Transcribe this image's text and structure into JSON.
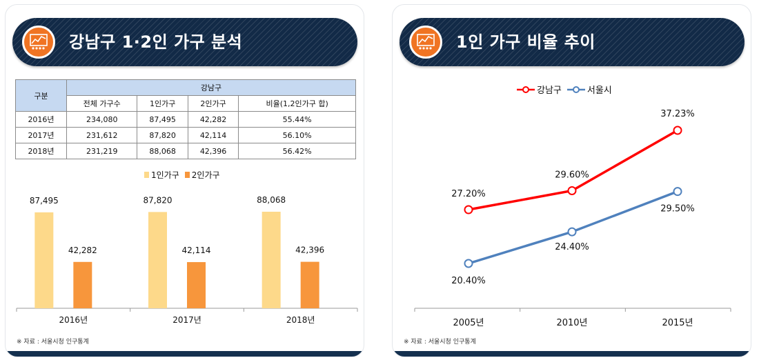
{
  "left": {
    "title": "강남구 1·2인 가구 분석",
    "table": {
      "col_group_label": "구분",
      "region": "강남구",
      "headers": [
        "전체 가구수",
        "1인가구",
        "2인가구",
        "비율(1,2인가구 합)"
      ],
      "rows": [
        [
          "2016년",
          "234,080",
          "87,495",
          "42,282",
          "55.44%"
        ],
        [
          "2017년",
          "231,612",
          "87,820",
          "42,114",
          "56.10%"
        ],
        [
          "2018년",
          "231,219",
          "88,068",
          "42,396",
          "56.42%"
        ]
      ]
    },
    "legend": [
      "1인가구",
      "2인가구"
    ],
    "source": "※ 자료 : 서울시청 인구통계"
  },
  "right": {
    "title": "1인 가구 비율 추이",
    "legend": [
      "강남구",
      "서울시"
    ],
    "source": "※ 자료 : 서울시청 인구통계"
  },
  "colors": {
    "header_bg": "#122a47",
    "badge": "#f07423",
    "one_person": "#fdd98a",
    "two_person": "#f7963c",
    "gangnam": "#ff0000",
    "seoul": "#4f81bd",
    "table_head": "#c6d9f1"
  },
  "chart_data": [
    {
      "type": "bar",
      "categories": [
        "2016년",
        "2017년",
        "2018년"
      ],
      "series": [
        {
          "name": "1인가구",
          "values": [
            87495,
            87820,
            88068
          ],
          "labels": [
            "87,495",
            "87,820",
            "88,068"
          ]
        },
        {
          "name": "2인가구",
          "values": [
            42282,
            42114,
            42396
          ],
          "labels": [
            "42,282",
            "42,114",
            "42,396"
          ]
        }
      ],
      "legend_position": "top-center",
      "grid": false
    },
    {
      "type": "line",
      "categories": [
        "2005년",
        "2010년",
        "2015년"
      ],
      "series": [
        {
          "name": "강남구",
          "values": [
            27.2,
            29.6,
            37.23
          ],
          "labels": [
            "27.20%",
            "29.60%",
            "37.23%"
          ]
        },
        {
          "name": "서울시",
          "values": [
            20.4,
            24.4,
            29.5
          ],
          "labels": [
            "20.40%",
            "24.40%",
            "29.50%"
          ]
        }
      ],
      "legend_position": "top-center",
      "grid": false
    }
  ]
}
